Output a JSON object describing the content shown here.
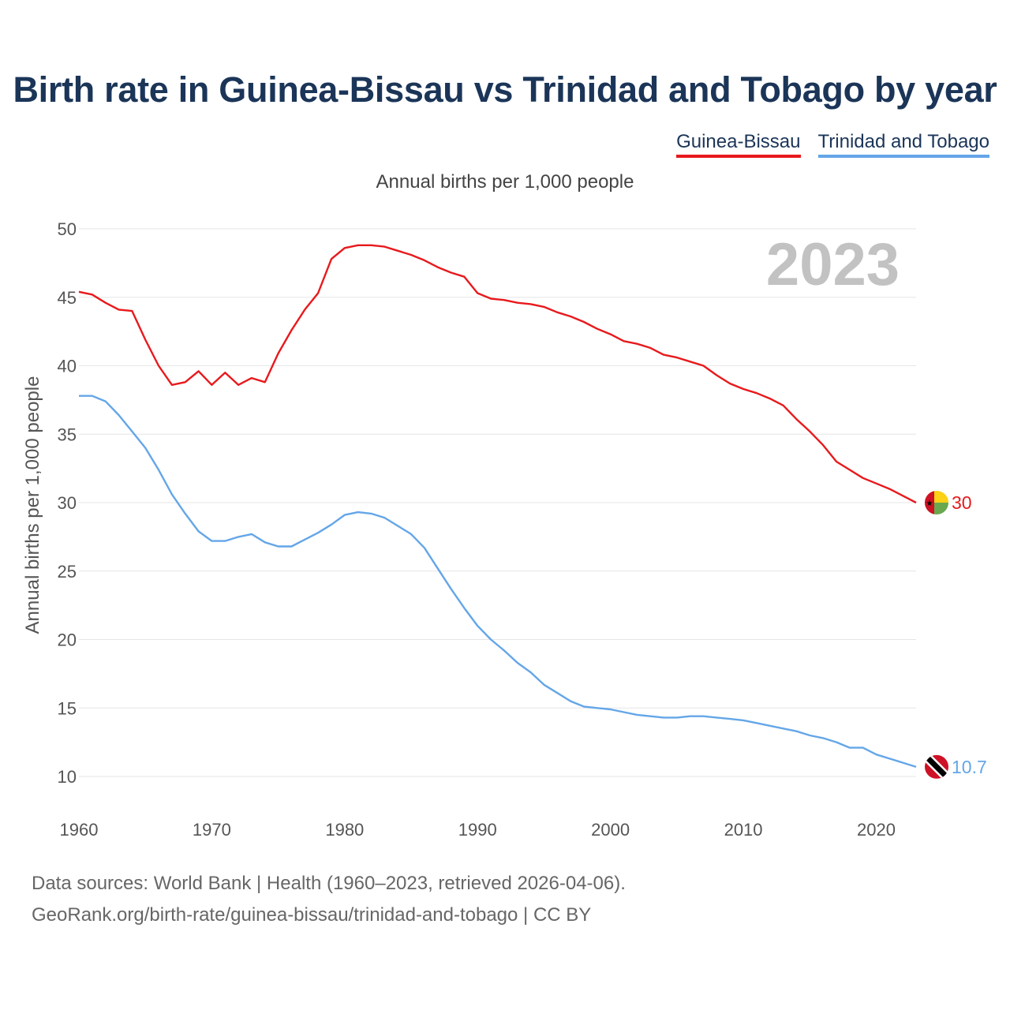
{
  "title": "Birth rate in Guinea-Bissau vs Trinidad and Tobago by year",
  "chart_data": {
    "type": "line",
    "title": "Birth rate in Guinea-Bissau vs Trinidad and Tobago by year",
    "subtitle": "Annual births per 1,000 people",
    "ylabel": "Annual births per 1,000 people",
    "xlabel": "",
    "xlim": [
      1960,
      2023
    ],
    "ylim": [
      10,
      50
    ],
    "y_ticks": [
      10,
      15,
      20,
      25,
      30,
      35,
      40,
      45,
      50
    ],
    "x_ticks": [
      1960,
      1970,
      1980,
      1990,
      2000,
      2010,
      2020
    ],
    "year_watermark": "2023",
    "legend_position": "top-right",
    "series": [
      {
        "name": "Guinea-Bissau",
        "color": "#e8191c",
        "end_label": "30",
        "flag": "guinea-bissau-flag-icon",
        "x": [
          1960,
          1961,
          1962,
          1963,
          1964,
          1965,
          1966,
          1967,
          1968,
          1969,
          1970,
          1971,
          1972,
          1973,
          1974,
          1975,
          1976,
          1977,
          1978,
          1979,
          1980,
          1981,
          1982,
          1983,
          1984,
          1985,
          1986,
          1987,
          1988,
          1989,
          1990,
          1991,
          1992,
          1993,
          1994,
          1995,
          1996,
          1997,
          1998,
          1999,
          2000,
          2001,
          2002,
          2003,
          2004,
          2005,
          2006,
          2007,
          2008,
          2009,
          2010,
          2011,
          2012,
          2013,
          2014,
          2015,
          2016,
          2017,
          2018,
          2019,
          2020,
          2021,
          2022,
          2023
        ],
        "values": [
          45.4,
          45.2,
          44.6,
          44.1,
          44.0,
          41.9,
          40.0,
          38.6,
          38.8,
          39.6,
          38.6,
          39.5,
          38.6,
          39.1,
          38.8,
          40.9,
          42.6,
          44.1,
          45.3,
          47.8,
          48.6,
          48.8,
          48.8,
          48.7,
          48.4,
          48.1,
          47.7,
          47.2,
          46.8,
          46.5,
          45.3,
          44.9,
          44.8,
          44.6,
          44.5,
          44.3,
          43.9,
          43.6,
          43.2,
          42.7,
          42.3,
          41.8,
          41.6,
          41.3,
          40.8,
          40.6,
          40.3,
          40.0,
          39.3,
          38.7,
          38.3,
          38.0,
          37.6,
          37.1,
          36.1,
          35.2,
          34.2,
          33.0,
          32.4,
          31.8,
          31.4,
          31.0,
          30.5,
          30.0
        ]
      },
      {
        "name": "Trinidad and Tobago",
        "color": "#64a6e8",
        "end_label": "10.7",
        "flag": "trinidad-and-tobago-flag-icon",
        "x": [
          1960,
          1961,
          1962,
          1963,
          1964,
          1965,
          1966,
          1967,
          1968,
          1969,
          1970,
          1971,
          1972,
          1973,
          1974,
          1975,
          1976,
          1977,
          1978,
          1979,
          1980,
          1981,
          1982,
          1983,
          1984,
          1985,
          1986,
          1987,
          1988,
          1989,
          1990,
          1991,
          1992,
          1993,
          1994,
          1995,
          1996,
          1997,
          1998,
          1999,
          2000,
          2001,
          2002,
          2003,
          2004,
          2005,
          2006,
          2007,
          2008,
          2009,
          2010,
          2011,
          2012,
          2013,
          2014,
          2015,
          2016,
          2017,
          2018,
          2019,
          2020,
          2021,
          2022,
          2023
        ],
        "values": [
          37.8,
          37.8,
          37.4,
          36.4,
          35.2,
          34.0,
          32.4,
          30.6,
          29.2,
          27.9,
          27.2,
          27.2,
          27.5,
          27.7,
          27.1,
          26.8,
          26.8,
          27.3,
          27.8,
          28.4,
          29.1,
          29.3,
          29.2,
          28.9,
          28.3,
          27.7,
          26.7,
          25.2,
          23.7,
          22.3,
          21.0,
          20.0,
          19.2,
          18.3,
          17.6,
          16.7,
          16.1,
          15.5,
          15.1,
          15.0,
          14.9,
          14.7,
          14.5,
          14.4,
          14.3,
          14.3,
          14.4,
          14.4,
          14.3,
          14.2,
          14.1,
          13.9,
          13.7,
          13.5,
          13.3,
          13.0,
          12.8,
          12.5,
          12.1,
          12.1,
          11.6,
          11.3,
          11.0,
          10.7
        ]
      }
    ]
  },
  "source": {
    "line1": "Data sources: World Bank | Health (1960–2023, retrieved 2026-04-06).",
    "line2": "GeoRank.org/birth-rate/guinea-bissau/trinidad-and-tobago | CC BY"
  }
}
